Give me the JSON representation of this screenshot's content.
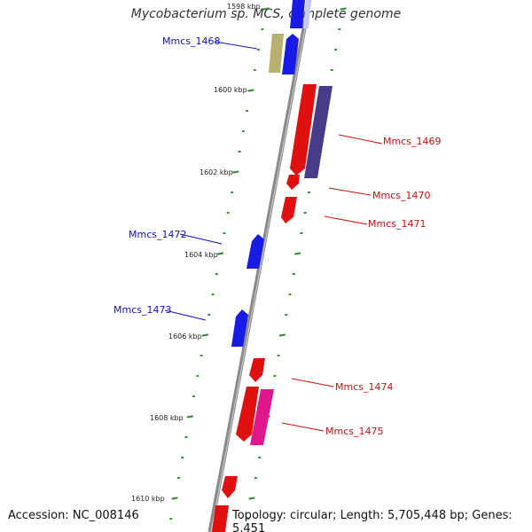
{
  "title": "Mycobacterium sp. MCS, complete genome",
  "footer": {
    "accession": "Accession: NC_008146",
    "topology": "Topology: circular; Length: 5,705,448 bp; Genes: 5,451"
  },
  "colors": {
    "backbone": "#8a8a8a",
    "tick": "#2e8b2e",
    "forward_gene": "#e01010",
    "reverse_gene": "#1a1ae6",
    "forward_label": "#cc1111",
    "reverse_label": "#1111bb",
    "dark_purple_gene": "#4a3a8a",
    "olive_gene": "#b8b070",
    "pink_gene": "#e0168c"
  },
  "kbp_labels": [
    "1598 kbp",
    "1600 kbp",
    "1602 kbp",
    "1604 kbp",
    "1606 kbp",
    "1608 kbp",
    "1610 kbp"
  ],
  "gene_labels": {
    "mmcs_1468": "Mmcs_1468",
    "mmcs_1469": "Mmcs_1469",
    "mmcs_1470": "Mmcs_1470",
    "mmcs_1471": "Mmcs_1471",
    "mmcs_1472": "Mmcs_1472",
    "mmcs_1473": "Mmcs_1473",
    "mmcs_1474": "Mmcs_1474",
    "mmcs_1475": "Mmcs_1475"
  }
}
